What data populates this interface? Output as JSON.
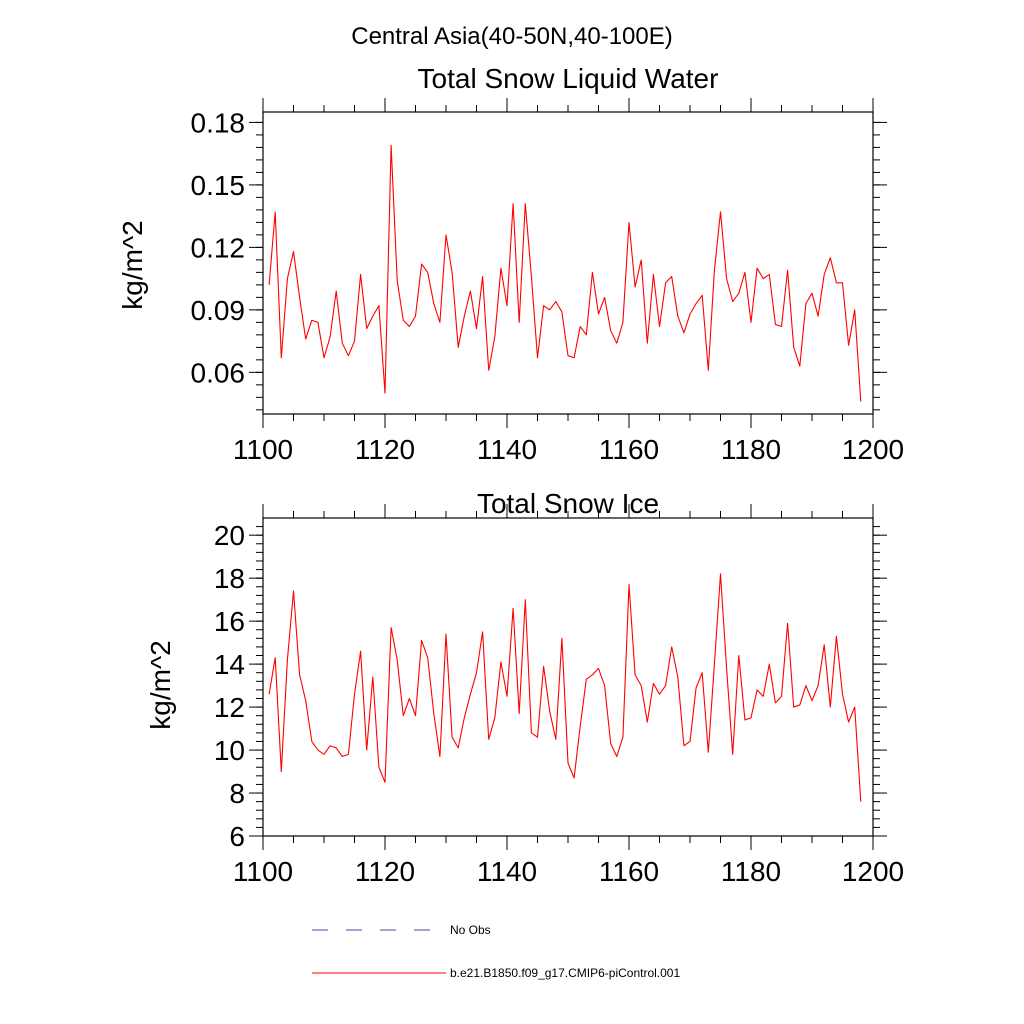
{
  "figure": {
    "main_title": "Central Asia(40-50N,40-100E)"
  },
  "colors": {
    "model_line": "#ff0000",
    "obs_line": "#4a4aa0",
    "axis": "#000000"
  },
  "legend": {
    "placement": "bottom",
    "entries": [
      {
        "label": "No Obs",
        "style": "dashed",
        "color": "#4a4aa0"
      },
      {
        "label": "b.e21.B1850.f09_g17.CMIP6-piControl.001",
        "style": "solid",
        "color": "#ff0000"
      }
    ]
  },
  "chart_data": [
    {
      "type": "line",
      "title": "Total Snow Liquid Water",
      "xlabel": "",
      "ylabel": "kg/m^2",
      "xlim": [
        1100,
        1200
      ],
      "ylim": [
        0.04,
        0.185
      ],
      "xticks": [
        1100,
        1120,
        1140,
        1160,
        1180,
        1200
      ],
      "xtick_labels": [
        "1100",
        "1120",
        "1140",
        "1160",
        "1180",
        "1200"
      ],
      "yticks": [
        0.06,
        0.09,
        0.12,
        0.15,
        0.18
      ],
      "ytick_labels": [
        "0.06",
        "0.09",
        "0.12",
        "0.15",
        "0.18"
      ],
      "x": [
        1101,
        1102,
        1103,
        1104,
        1105,
        1106,
        1107,
        1108,
        1109,
        1110,
        1111,
        1112,
        1113,
        1114,
        1115,
        1116,
        1117,
        1118,
        1119,
        1120,
        1121,
        1122,
        1123,
        1124,
        1125,
        1126,
        1127,
        1128,
        1129,
        1130,
        1131,
        1132,
        1133,
        1134,
        1135,
        1136,
        1137,
        1138,
        1139,
        1140,
        1141,
        1142,
        1143,
        1144,
        1145,
        1146,
        1147,
        1148,
        1149,
        1150,
        1151,
        1152,
        1153,
        1154,
        1155,
        1156,
        1157,
        1158,
        1159,
        1160,
        1161,
        1162,
        1163,
        1164,
        1165,
        1166,
        1167,
        1168,
        1169,
        1170,
        1171,
        1172,
        1173,
        1174,
        1175,
        1176,
        1177,
        1178,
        1179,
        1180,
        1181,
        1182,
        1183,
        1184,
        1185,
        1186,
        1187,
        1188,
        1189,
        1190,
        1191,
        1192,
        1193,
        1194,
        1195,
        1196,
        1197,
        1198
      ],
      "series": [
        {
          "name": "b.e21.B1850.f09_g17.CMIP6-piControl.001",
          "values": [
            0.102,
            0.137,
            0.067,
            0.105,
            0.118,
            0.096,
            0.076,
            0.085,
            0.084,
            0.067,
            0.077,
            0.099,
            0.074,
            0.068,
            0.075,
            0.107,
            0.081,
            0.087,
            0.092,
            0.05,
            0.169,
            0.104,
            0.085,
            0.082,
            0.087,
            0.112,
            0.108,
            0.093,
            0.084,
            0.126,
            0.108,
            0.072,
            0.087,
            0.099,
            0.081,
            0.106,
            0.061,
            0.077,
            0.11,
            0.092,
            0.141,
            0.084,
            0.141,
            0.106,
            0.067,
            0.092,
            0.09,
            0.094,
            0.089,
            0.068,
            0.067,
            0.082,
            0.078,
            0.108,
            0.088,
            0.096,
            0.08,
            0.074,
            0.084,
            0.132,
            0.101,
            0.114,
            0.074,
            0.107,
            0.082,
            0.103,
            0.106,
            0.087,
            0.079,
            0.088,
            0.093,
            0.097,
            0.061,
            0.109,
            0.137,
            0.105,
            0.094,
            0.098,
            0.108,
            0.084,
            0.11,
            0.105,
            0.107,
            0.083,
            0.082,
            0.109,
            0.072,
            0.063,
            0.093,
            0.098,
            0.087,
            0.107,
            0.115,
            0.103,
            0.103,
            0.073,
            0.09,
            0.046
          ]
        }
      ]
    },
    {
      "type": "line",
      "title": "Total Snow Ice",
      "xlabel": "",
      "ylabel": "kg/m^2",
      "xlim": [
        1100,
        1200
      ],
      "ylim": [
        6,
        20.8
      ],
      "xticks": [
        1100,
        1120,
        1140,
        1160,
        1180,
        1200
      ],
      "xtick_labels": [
        "1100",
        "1120",
        "1140",
        "1160",
        "1180",
        "1200"
      ],
      "yticks": [
        6,
        8,
        10,
        12,
        14,
        16,
        18,
        20
      ],
      "ytick_labels": [
        "6",
        "8",
        "10",
        "12",
        "14",
        "16",
        "18",
        "20"
      ],
      "x": [
        1101,
        1102,
        1103,
        1104,
        1105,
        1106,
        1107,
        1108,
        1109,
        1110,
        1111,
        1112,
        1113,
        1114,
        1115,
        1116,
        1117,
        1118,
        1119,
        1120,
        1121,
        1122,
        1123,
        1124,
        1125,
        1126,
        1127,
        1128,
        1129,
        1130,
        1131,
        1132,
        1133,
        1134,
        1135,
        1136,
        1137,
        1138,
        1139,
        1140,
        1141,
        1142,
        1143,
        1144,
        1145,
        1146,
        1147,
        1148,
        1149,
        1150,
        1151,
        1152,
        1153,
        1154,
        1155,
        1156,
        1157,
        1158,
        1159,
        1160,
        1161,
        1162,
        1163,
        1164,
        1165,
        1166,
        1167,
        1168,
        1169,
        1170,
        1171,
        1172,
        1173,
        1174,
        1175,
        1176,
        1177,
        1178,
        1179,
        1180,
        1181,
        1182,
        1183,
        1184,
        1185,
        1186,
        1187,
        1188,
        1189,
        1190,
        1191,
        1192,
        1193,
        1194,
        1195,
        1196,
        1197,
        1198
      ],
      "series": [
        {
          "name": "b.e21.B1850.f09_g17.CMIP6-piControl.001",
          "values": [
            12.6,
            14.3,
            9.0,
            14.2,
            17.4,
            13.5,
            12.3,
            10.4,
            10.0,
            9.8,
            10.2,
            10.1,
            9.7,
            9.8,
            12.6,
            14.6,
            10.0,
            13.4,
            9.2,
            8.5,
            15.7,
            14.2,
            11.6,
            12.4,
            11.6,
            15.1,
            14.3,
            11.7,
            9.7,
            15.4,
            10.6,
            10.1,
            11.5,
            12.6,
            13.6,
            15.5,
            10.5,
            11.5,
            14.1,
            12.5,
            16.6,
            11.7,
            17.0,
            10.8,
            10.6,
            13.9,
            11.8,
            10.5,
            15.2,
            9.4,
            8.7,
            11.1,
            13.3,
            13.5,
            13.8,
            13.0,
            10.3,
            9.7,
            10.6,
            17.7,
            13.5,
            13.0,
            11.3,
            13.1,
            12.6,
            13.0,
            14.8,
            13.4,
            10.2,
            10.4,
            12.9,
            13.6,
            9.9,
            14.0,
            18.2,
            13.8,
            9.8,
            14.4,
            11.4,
            11.5,
            12.8,
            12.5,
            14.0,
            12.2,
            12.5,
            15.9,
            12.0,
            12.1,
            13.0,
            12.3,
            13.0,
            14.9,
            12.0,
            15.3,
            12.6,
            11.3,
            12.0,
            7.6
          ]
        }
      ]
    }
  ]
}
